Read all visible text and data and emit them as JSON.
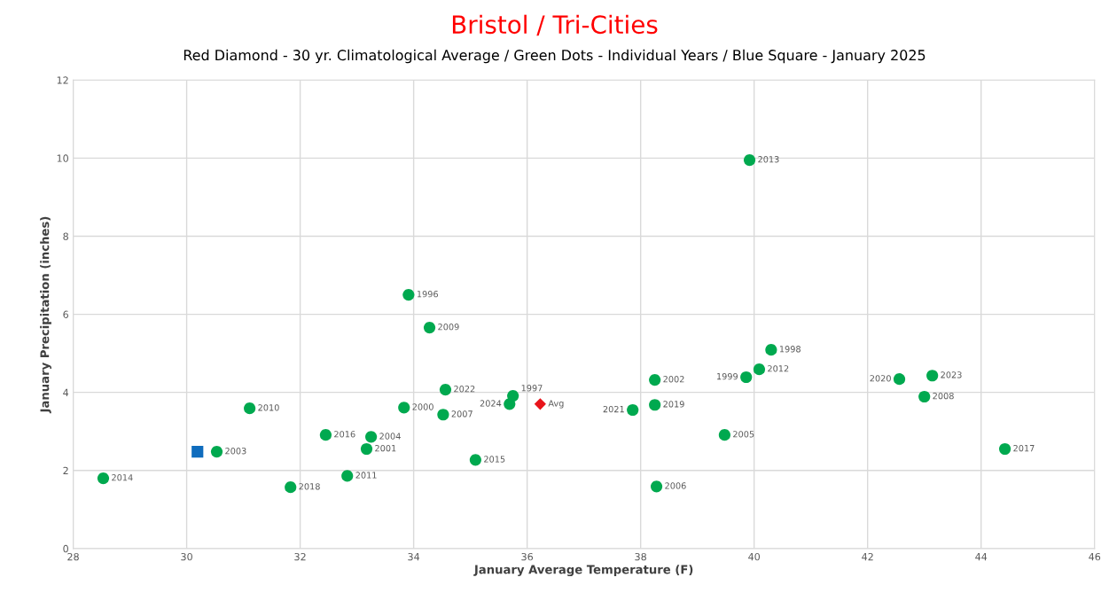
{
  "chart_data": {
    "type": "scatter",
    "title": "Bristol / Tri-Cities",
    "subtitle": "Red Diamond - 30 yr. Climatological Average / Green Dots - Individual Years / Blue Square - January 2025",
    "xlabel": "January Average Temperature (F)",
    "ylabel": "January Precipitation (inches)",
    "xlim": [
      28,
      46
    ],
    "xticks": [
      28,
      30,
      32,
      34,
      36,
      38,
      40,
      42,
      44,
      46
    ],
    "ylim": [
      0,
      12
    ],
    "yticks": [
      0,
      2,
      4,
      6,
      8,
      10,
      12
    ],
    "grid": true,
    "series": [
      {
        "marker": "circle",
        "color": "#00a94f",
        "x": [
          28.53,
          30.53,
          31.11,
          31.83,
          32.45,
          32.83,
          33.25,
          33.17,
          33.83,
          33.91,
          34.28,
          34.56,
          34.52,
          35.09,
          35.69,
          35.75,
          37.86,
          38.25,
          38.25,
          38.28,
          39.48,
          39.92,
          39.86,
          40.09,
          40.3,
          42.56,
          43.14,
          43.0,
          44.42
        ],
        "values": [
          1.8,
          2.48,
          3.59,
          1.57,
          2.91,
          1.86,
          2.86,
          2.55,
          3.61,
          6.5,
          5.66,
          4.07,
          3.43,
          2.27,
          3.7,
          3.91,
          3.55,
          4.32,
          3.68,
          1.59,
          2.91,
          9.95,
          4.39,
          4.59,
          5.09,
          4.34,
          4.43,
          3.89,
          2.55
        ]
      },
      {
        "marker": "diamond",
        "color": "#e8141b",
        "x": [
          36.23
        ],
        "values": [
          3.7
        ]
      },
      {
        "marker": "square",
        "color": "#0f6cbd",
        "x": [
          30.19
        ],
        "values": [
          2.48
        ]
      }
    ],
    "annotations": [
      {
        "text": "2014",
        "x": 28.53,
        "y": 1.8
      },
      {
        "text": "2003",
        "x": 30.53,
        "y": 2.48
      },
      {
        "text": "2010",
        "x": 31.11,
        "y": 3.59
      },
      {
        "text": "2018",
        "x": 31.83,
        "y": 1.57
      },
      {
        "text": "2016",
        "x": 32.45,
        "y": 2.91
      },
      {
        "text": "2011",
        "x": 32.83,
        "y": 1.86
      },
      {
        "text": "2004",
        "x": 33.25,
        "y": 2.86
      },
      {
        "text": "2001",
        "x": 33.17,
        "y": 2.55
      },
      {
        "text": "2000",
        "x": 33.83,
        "y": 3.61
      },
      {
        "text": "1996",
        "x": 33.91,
        "y": 6.5
      },
      {
        "text": "2009",
        "x": 34.28,
        "y": 5.66
      },
      {
        "text": "2022",
        "x": 34.56,
        "y": 4.07
      },
      {
        "text": "2007",
        "x": 34.52,
        "y": 3.43
      },
      {
        "text": "2015",
        "x": 35.09,
        "y": 2.27
      },
      {
        "text": "2024",
        "x": 35.69,
        "y": 3.7
      },
      {
        "text": "1997",
        "x": 35.75,
        "y": 3.91
      },
      {
        "text": "2021",
        "x": 37.86,
        "y": 3.55
      },
      {
        "text": "2002",
        "x": 38.25,
        "y": 4.32
      },
      {
        "text": "2019",
        "x": 38.25,
        "y": 3.68
      },
      {
        "text": "2006",
        "x": 38.28,
        "y": 1.59
      },
      {
        "text": "2005",
        "x": 39.48,
        "y": 2.91
      },
      {
        "text": "2013",
        "x": 39.92,
        "y": 9.95
      },
      {
        "text": "1999",
        "x": 39.86,
        "y": 4.39
      },
      {
        "text": "2012",
        "x": 40.09,
        "y": 4.59
      },
      {
        "text": "1998",
        "x": 40.3,
        "y": 5.09
      },
      {
        "text": "2020",
        "x": 42.56,
        "y": 4.34
      },
      {
        "text": "2023",
        "x": 43.14,
        "y": 4.43
      },
      {
        "text": "2008",
        "x": 43.0,
        "y": 3.89
      },
      {
        "text": "2017",
        "x": 44.42,
        "y": 2.55
      },
      {
        "text": "Avg",
        "x": 36.23,
        "y": 3.7
      }
    ]
  }
}
